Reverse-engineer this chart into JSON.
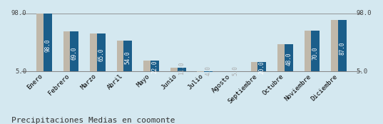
{
  "categories": [
    "Enero",
    "Febrero",
    "Marzo",
    "Abril",
    "Mayo",
    "Junio",
    "Julio",
    "Agosto",
    "Septiembre",
    "Octubre",
    "Noviembre",
    "Diciembre"
  ],
  "values": [
    98.0,
    69.0,
    65.0,
    54.0,
    22.0,
    11.0,
    4.0,
    5.0,
    20.0,
    48.0,
    70.0,
    87.0
  ],
  "bar_color": "#1b5e8a",
  "bg_bar_color": "#c0b8aa",
  "background_color": "#d4e8f0",
  "title": "Precipitaciones Medias en coomonte",
  "ylim_min": 5.0,
  "ylim_max": 98.0,
  "value_fontsize": 5.5,
  "label_fontsize": 6.5,
  "title_fontsize": 8.0
}
